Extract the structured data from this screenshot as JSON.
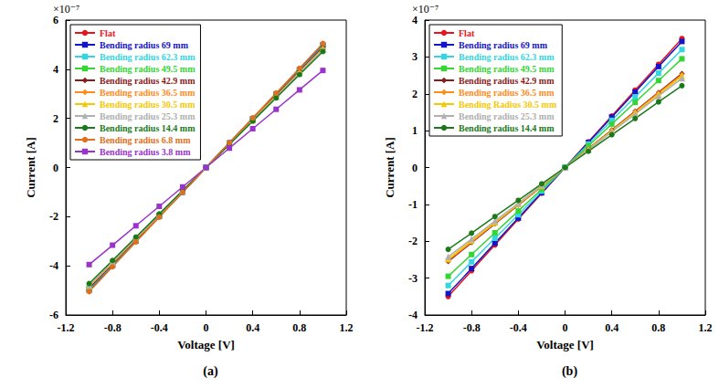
{
  "chart_data": [
    {
      "type": "line",
      "title": "(a)",
      "annotation": "×10⁻⁷",
      "x_label": "Voltage [V]",
      "y_label": "Current [A]",
      "x": [
        -1,
        -0.8,
        -0.6,
        -0.4,
        -0.2,
        0,
        0.2,
        0.4,
        0.6,
        0.8,
        1
      ],
      "xlim": [
        -1.2,
        1.2
      ],
      "xticks": [
        -1.2,
        -0.8,
        -0.4,
        0,
        0.4,
        0.8,
        1.2
      ],
      "ylim": [
        -6,
        6
      ],
      "yticks": [
        -6,
        -4,
        -2,
        0,
        2,
        4,
        6
      ],
      "grid": false,
      "legend": "upper left",
      "series": [
        {
          "name": "Flat",
          "color": "#e8141c",
          "marker": "circle",
          "values": [
            -5,
            -4,
            -3,
            -2,
            -1,
            0,
            1,
            2,
            3,
            4,
            5
          ]
        },
        {
          "name": "Bending radius 69 mm",
          "color": "#1414c8",
          "marker": "square",
          "values": [
            -4.98,
            -3.98,
            -2.99,
            -1.99,
            -1.0,
            0,
            1.0,
            1.99,
            2.99,
            3.98,
            4.98
          ]
        },
        {
          "name": "Bending radius 62.3 mm",
          "color": "#33d6e0",
          "marker": "square",
          "values": [
            -4.95,
            -3.96,
            -2.97,
            -1.98,
            -0.99,
            0,
            0.99,
            1.98,
            2.97,
            3.96,
            4.95
          ]
        },
        {
          "name": "Bending radius 49.5 mm",
          "color": "#33d633",
          "marker": "square",
          "values": [
            -4.88,
            -3.9,
            -2.93,
            -1.95,
            -0.98,
            0,
            0.98,
            1.95,
            2.93,
            3.9,
            4.88
          ]
        },
        {
          "name": "Bending radius 42.9 mm",
          "color": "#8b1a1a",
          "marker": "diamond",
          "values": [
            -4.9,
            -3.92,
            -2.94,
            -1.96,
            -0.98,
            0,
            0.98,
            1.96,
            2.94,
            3.92,
            4.9
          ]
        },
        {
          "name": "Bending radius 36.5 mm",
          "color": "#ff8c1a",
          "marker": "diamond",
          "values": [
            -4.85,
            -3.88,
            -2.91,
            -1.94,
            -0.97,
            0,
            0.97,
            1.94,
            2.91,
            3.88,
            4.85
          ]
        },
        {
          "name": "Bending radius 30.5 mm",
          "color": "#f5c800",
          "marker": "triangle",
          "values": [
            -4.82,
            -3.86,
            -2.89,
            -1.93,
            -0.96,
            0,
            0.96,
            1.93,
            2.89,
            3.86,
            4.82
          ]
        },
        {
          "name": "Bending radius 25.3 mm",
          "color": "#b0b0b0",
          "marker": "triangle",
          "values": [
            -4.8,
            -3.84,
            -2.88,
            -1.92,
            -0.96,
            0,
            0.96,
            1.92,
            2.88,
            3.84,
            4.8
          ]
        },
        {
          "name": "Bending radius 14.4 mm",
          "color": "#1a7a1a",
          "marker": "circle",
          "values": [
            -4.72,
            -3.78,
            -2.83,
            -1.89,
            -0.94,
            0,
            0.94,
            1.89,
            2.83,
            3.78,
            4.72
          ]
        },
        {
          "name": "Bending radius 6.8 mm",
          "color": "#e07020",
          "marker": "circle",
          "values": [
            -5.05,
            -4.04,
            -3.03,
            -2.02,
            -1.01,
            0,
            1.01,
            2.02,
            3.03,
            4.04,
            5.05
          ]
        },
        {
          "name": "Bending radius 3.8 mm",
          "color": "#9933cc",
          "marker": "square",
          "values": [
            -3.95,
            -3.16,
            -2.37,
            -1.58,
            -0.79,
            0,
            0.79,
            1.58,
            2.37,
            3.16,
            3.95
          ]
        }
      ]
    },
    {
      "type": "line",
      "title": "(b)",
      "annotation": "×10⁻⁷",
      "x_label": "Voltage [V]",
      "y_label": "Current [A]",
      "x": [
        -1,
        -0.8,
        -0.6,
        -0.4,
        -0.2,
        0,
        0.2,
        0.4,
        0.6,
        0.8,
        1
      ],
      "xlim": [
        -1.2,
        1.2
      ],
      "xticks": [
        -1.2,
        -0.8,
        -0.4,
        0,
        0.4,
        0.8,
        1.2
      ],
      "ylim": [
        -4,
        4
      ],
      "yticks": [
        -4,
        -3,
        -2,
        -1,
        0,
        1,
        2,
        3,
        4
      ],
      "grid": false,
      "legend": "upper left",
      "series": [
        {
          "name": "Flat",
          "color": "#e8141c",
          "marker": "circle",
          "values": [
            -3.5,
            -2.8,
            -2.1,
            -1.4,
            -0.7,
            0,
            0.7,
            1.4,
            2.1,
            2.8,
            3.5
          ]
        },
        {
          "name": "Bending radius 69 mm",
          "color": "#1414c8",
          "marker": "square",
          "values": [
            -3.42,
            -2.74,
            -2.05,
            -1.37,
            -0.68,
            0,
            0.68,
            1.37,
            2.05,
            2.74,
            3.42
          ]
        },
        {
          "name": "Bending radius 62.3 mm",
          "color": "#33d6e0",
          "marker": "square",
          "values": [
            -3.2,
            -2.56,
            -1.92,
            -1.28,
            -0.64,
            0,
            0.64,
            1.28,
            1.92,
            2.56,
            3.2
          ]
        },
        {
          "name": "Bending radius 49.5 mm",
          "color": "#33d633",
          "marker": "square",
          "values": [
            -2.95,
            -2.36,
            -1.77,
            -1.18,
            -0.59,
            0,
            0.59,
            1.18,
            1.77,
            2.36,
            2.95
          ]
        },
        {
          "name": "Bending radius 42.9 mm",
          "color": "#8b1a1a",
          "marker": "diamond",
          "values": [
            -2.55,
            -2.04,
            -1.53,
            -1.02,
            -0.51,
            0,
            0.51,
            1.02,
            1.53,
            2.04,
            2.55
          ]
        },
        {
          "name": "Bending radius 36.5 mm",
          "color": "#ff8c1a",
          "marker": "diamond",
          "values": [
            -2.52,
            -2.02,
            -1.51,
            -1.01,
            -0.5,
            0,
            0.5,
            1.01,
            1.51,
            2.02,
            2.52
          ]
        },
        {
          "name": "Bending Radius 30.5 mm",
          "color": "#f5c800",
          "marker": "triangle",
          "values": [
            -2.48,
            -1.98,
            -1.49,
            -0.99,
            -0.5,
            0,
            0.5,
            0.99,
            1.49,
            1.98,
            2.48
          ]
        },
        {
          "name": "Bending radius 25.3 mm",
          "color": "#b0b0b0",
          "marker": "triangle",
          "values": [
            -2.42,
            -1.94,
            -1.45,
            -0.97,
            -0.48,
            0,
            0.48,
            0.97,
            1.45,
            1.94,
            2.42
          ]
        },
        {
          "name": "Bending radius 14.4 mm",
          "color": "#1a7a1a",
          "marker": "circle",
          "values": [
            -2.22,
            -1.78,
            -1.33,
            -0.89,
            -0.44,
            0,
            0.44,
            0.89,
            1.33,
            1.78,
            2.22
          ]
        }
      ]
    }
  ]
}
